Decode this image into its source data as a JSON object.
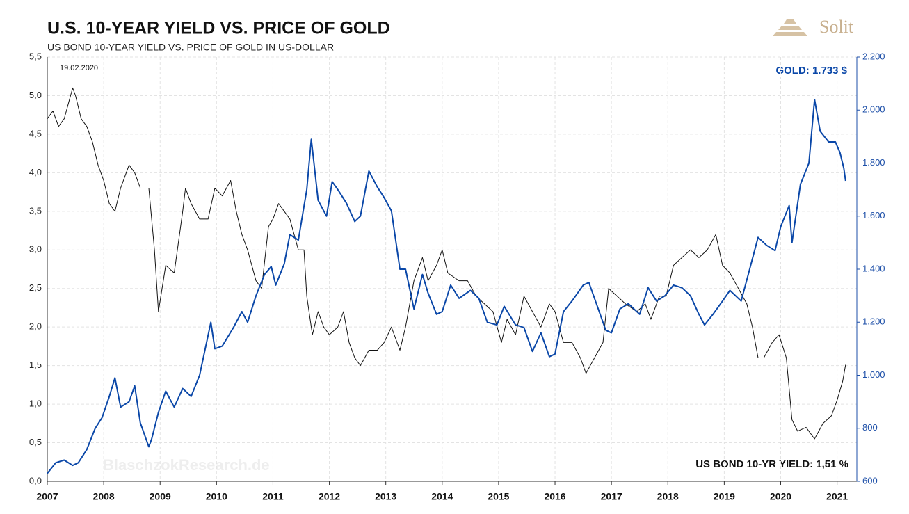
{
  "chart_data": {
    "type": "line",
    "title": "U.S. 10-YEAR YIELD VS. PRICE OF GOLD",
    "subtitle": "US BOND  10-YEAR YIELD VS. PRICE OF GOLD IN US-DOLLAR",
    "annotations": [
      "19.02.2020",
      "GOLD: 1.733 $",
      "US BOND 10-YR YIELD: 1,51 %"
    ],
    "watermark": "BlaschzokResearch.de",
    "logo": "Solit",
    "xlim": [
      2007,
      2021.35
    ],
    "xticks": [
      2007,
      2008,
      2009,
      2010,
      2011,
      2012,
      2013,
      2014,
      2015,
      2016,
      2017,
      2018,
      2019,
      2020,
      2021
    ],
    "ylim": [
      0,
      5.5
    ],
    "yticks": [
      {
        "value": 0,
        "label": "0,0"
      },
      {
        "value": 0.5,
        "label": "0,5"
      },
      {
        "value": 1,
        "label": "1,0"
      },
      {
        "value": 1.5,
        "label": "1,5"
      },
      {
        "value": 2,
        "label": "2,0"
      },
      {
        "value": 2.5,
        "label": "2,5"
      },
      {
        "value": 3,
        "label": "3,0"
      },
      {
        "value": 3.5,
        "label": "3,5"
      },
      {
        "value": 4,
        "label": "4,0"
      },
      {
        "value": 4.5,
        "label": "4,5"
      },
      {
        "value": 5,
        "label": "5,0"
      },
      {
        "value": 5.5,
        "label": "5,5"
      }
    ],
    "y2lim": [
      600,
      2200
    ],
    "y2ticks": [
      600,
      800,
      {
        "value": 1000,
        "label": "1.000"
      },
      {
        "value": 1200,
        "label": "1.200"
      },
      {
        "value": 1400,
        "label": "1.400"
      },
      {
        "value": 1600,
        "label": "1.600"
      },
      {
        "value": 1800,
        "label": "1.800"
      },
      {
        "value": 2000,
        "label": "2.000"
      },
      {
        "value": 2200,
        "label": "2.200"
      }
    ],
    "grid": true,
    "series": [
      {
        "color": "#111111",
        "axis": "y",
        "x": [
          2007.0,
          2007.1,
          2007.2,
          2007.3,
          2007.45,
          2007.5,
          2007.6,
          2007.7,
          2007.8,
          2007.9,
          2008.0,
          2008.1,
          2008.2,
          2008.3,
          2008.45,
          2008.55,
          2008.65,
          2008.8,
          2008.9,
          2008.97,
          2009.1,
          2009.25,
          2009.4,
          2009.45,
          2009.55,
          2009.7,
          2009.85,
          2009.97,
          2010.1,
          2010.25,
          2010.35,
          2010.45,
          2010.55,
          2010.7,
          2010.8,
          2010.92,
          2011.0,
          2011.1,
          2011.2,
          2011.3,
          2011.45,
          2011.55,
          2011.6,
          2011.7,
          2011.8,
          2011.9,
          2012.0,
          2012.15,
          2012.25,
          2012.35,
          2012.45,
          2012.55,
          2012.7,
          2012.85,
          2012.97,
          2013.1,
          2013.25,
          2013.35,
          2013.5,
          2013.65,
          2013.75,
          2013.9,
          2014.0,
          2014.1,
          2014.3,
          2014.45,
          2014.6,
          2014.75,
          2014.9,
          2015.05,
          2015.15,
          2015.3,
          2015.45,
          2015.6,
          2015.75,
          2015.9,
          2016.0,
          2016.15,
          2016.3,
          2016.45,
          2016.55,
          2016.7,
          2016.85,
          2016.95,
          2017.1,
          2017.25,
          2017.45,
          2017.6,
          2017.7,
          2017.85,
          2017.97,
          2018.1,
          2018.25,
          2018.4,
          2018.55,
          2018.7,
          2018.85,
          2018.97,
          2019.1,
          2019.25,
          2019.4,
          2019.5,
          2019.6,
          2019.7,
          2019.85,
          2019.97,
          2020.1,
          2020.15,
          2020.2,
          2020.3,
          2020.45,
          2020.6,
          2020.75,
          2020.9,
          2021.0,
          2021.1,
          2021.15
        ],
        "values": [
          4.7,
          4.8,
          4.6,
          4.7,
          5.1,
          5.0,
          4.7,
          4.6,
          4.4,
          4.1,
          3.9,
          3.6,
          3.5,
          3.8,
          4.1,
          4.0,
          3.8,
          3.8,
          3.0,
          2.2,
          2.8,
          2.7,
          3.5,
          3.8,
          3.6,
          3.4,
          3.4,
          3.8,
          3.7,
          3.9,
          3.5,
          3.2,
          3.0,
          2.6,
          2.5,
          3.3,
          3.4,
          3.6,
          3.5,
          3.4,
          3.0,
          3.0,
          2.4,
          1.9,
          2.2,
          2.0,
          1.9,
          2.0,
          2.2,
          1.8,
          1.6,
          1.5,
          1.7,
          1.7,
          1.8,
          2.0,
          1.7,
          2.0,
          2.6,
          2.9,
          2.6,
          2.8,
          3.0,
          2.7,
          2.6,
          2.6,
          2.4,
          2.3,
          2.2,
          1.8,
          2.1,
          1.9,
          2.4,
          2.2,
          2.0,
          2.3,
          2.2,
          1.8,
          1.8,
          1.6,
          1.4,
          1.6,
          1.8,
          2.5,
          2.4,
          2.3,
          2.2,
          2.3,
          2.1,
          2.4,
          2.4,
          2.8,
          2.9,
          3.0,
          2.9,
          3.0,
          3.2,
          2.8,
          2.7,
          2.5,
          2.3,
          2.0,
          1.6,
          1.6,
          1.8,
          1.9,
          1.6,
          1.2,
          0.8,
          0.65,
          0.7,
          0.55,
          0.75,
          0.85,
          1.05,
          1.3,
          1.51
        ]
      },
      {
        "color": "#0a47a8",
        "axis": "y2",
        "x": [
          2007.0,
          2007.15,
          2007.3,
          2007.45,
          2007.55,
          2007.7,
          2007.85,
          2007.97,
          2008.1,
          2008.2,
          2008.3,
          2008.45,
          2008.55,
          2008.65,
          2008.8,
          2008.85,
          2008.97,
          2009.1,
          2009.25,
          2009.4,
          2009.55,
          2009.7,
          2009.9,
          2009.97,
          2010.1,
          2010.3,
          2010.45,
          2010.55,
          2010.7,
          2010.85,
          2010.97,
          2011.05,
          2011.2,
          2011.3,
          2011.45,
          2011.6,
          2011.68,
          2011.8,
          2011.95,
          2012.05,
          2012.15,
          2012.3,
          2012.45,
          2012.55,
          2012.7,
          2012.85,
          2012.97,
          2013.1,
          2013.25,
          2013.35,
          2013.5,
          2013.65,
          2013.75,
          2013.9,
          2014.0,
          2014.15,
          2014.3,
          2014.5,
          2014.65,
          2014.8,
          2014.97,
          2015.1,
          2015.3,
          2015.45,
          2015.6,
          2015.75,
          2015.9,
          2016.0,
          2016.15,
          2016.3,
          2016.5,
          2016.6,
          2016.75,
          2016.9,
          2017.0,
          2017.15,
          2017.3,
          2017.5,
          2017.65,
          2017.8,
          2017.95,
          2018.1,
          2018.25,
          2018.4,
          2018.55,
          2018.65,
          2018.8,
          2018.97,
          2019.1,
          2019.3,
          2019.45,
          2019.6,
          2019.75,
          2019.9,
          2020.0,
          2020.15,
          2020.2,
          2020.35,
          2020.5,
          2020.6,
          2020.7,
          2020.85,
          2020.97,
          2021.05,
          2021.12,
          2021.15
        ],
        "values": [
          630,
          670,
          680,
          660,
          670,
          720,
          800,
          840,
          920,
          990,
          880,
          900,
          960,
          820,
          730,
          760,
          860,
          940,
          880,
          950,
          920,
          1000,
          1200,
          1100,
          1110,
          1180,
          1240,
          1200,
          1300,
          1380,
          1410,
          1340,
          1420,
          1530,
          1510,
          1700,
          1890,
          1660,
          1600,
          1730,
          1700,
          1650,
          1580,
          1600,
          1770,
          1710,
          1670,
          1620,
          1400,
          1400,
          1250,
          1380,
          1310,
          1230,
          1240,
          1340,
          1290,
          1320,
          1290,
          1200,
          1190,
          1260,
          1190,
          1180,
          1090,
          1160,
          1070,
          1080,
          1240,
          1280,
          1340,
          1350,
          1260,
          1170,
          1160,
          1250,
          1270,
          1230,
          1330,
          1280,
          1300,
          1340,
          1330,
          1300,
          1230,
          1190,
          1230,
          1280,
          1320,
          1280,
          1400,
          1520,
          1490,
          1470,
          1560,
          1640,
          1500,
          1720,
          1800,
          2040,
          1920,
          1880,
          1880,
          1840,
          1780,
          1733
        ]
      }
    ]
  }
}
